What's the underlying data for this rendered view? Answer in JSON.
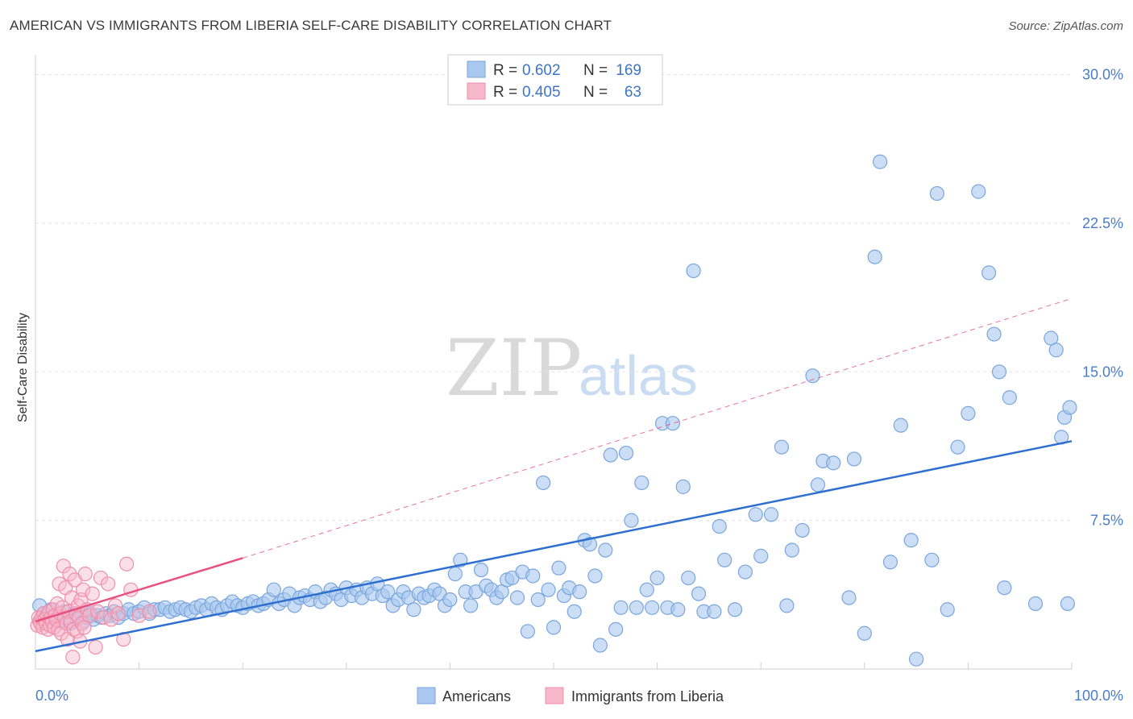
{
  "chart_data": {
    "type": "scatter",
    "title": "AMERICAN VS IMMIGRANTS FROM LIBERIA SELF-CARE DISABILITY CORRELATION CHART",
    "source": "Source: ZipAtlas.com",
    "xlabel": "",
    "ylabel": "Self-Care Disability",
    "xlim": [
      0,
      100
    ],
    "ylim": [
      0,
      31
    ],
    "x_tick_labels": [
      "0.0%",
      "100.0%"
    ],
    "y_ticks": [
      7.5,
      15.0,
      22.5,
      30.0
    ],
    "y_tick_labels": [
      "7.5%",
      "15.0%",
      "22.5%",
      "30.0%"
    ],
    "grid": true,
    "legend": {
      "position": "top-center",
      "r_label": "R =",
      "n_label": "N =",
      "entries": [
        {
          "r": "0.602",
          "n": "169"
        },
        {
          "r": "0.405",
          "n": "63"
        }
      ]
    },
    "watermark": {
      "zip": "ZIP",
      "atlas": "atlas"
    },
    "series": [
      {
        "name": "Americans",
        "color": "#a9c8ef",
        "stroke": "#7aa6dd",
        "trend_color": "#2f6fd0",
        "trend": {
          "x0": 0,
          "y0": 0.9,
          "x1": 100,
          "y1": 11.5
        },
        "points": [
          [
            0.4,
            3.2
          ],
          [
            0.8,
            2.8
          ],
          [
            1.2,
            2.6
          ],
          [
            1.5,
            3.0
          ],
          [
            1.8,
            2.5
          ],
          [
            2.2,
            2.7
          ],
          [
            2.5,
            2.4
          ],
          [
            2.8,
            2.9
          ],
          [
            3.1,
            2.6
          ],
          [
            3.4,
            2.3
          ],
          [
            3.7,
            2.8
          ],
          [
            4.0,
            2.5
          ],
          [
            4.3,
            2.7
          ],
          [
            4.6,
            2.4
          ],
          [
            5.0,
            2.6
          ],
          [
            5.3,
            2.8
          ],
          [
            5.6,
            2.5
          ],
          [
            6.0,
            2.7
          ],
          [
            6.4,
            2.6
          ],
          [
            6.8,
            2.8
          ],
          [
            7.2,
            2.7
          ],
          [
            7.6,
            2.9
          ],
          [
            8.0,
            2.6
          ],
          [
            8.5,
            2.8
          ],
          [
            9.0,
            3.0
          ],
          [
            9.5,
            2.8
          ],
          [
            10.0,
            2.9
          ],
          [
            10.5,
            3.1
          ],
          [
            11.0,
            2.8
          ],
          [
            11.5,
            3.0
          ],
          [
            12.0,
            3.0
          ],
          [
            12.5,
            3.1
          ],
          [
            13.0,
            2.9
          ],
          [
            13.5,
            3.0
          ],
          [
            14.0,
            3.1
          ],
          [
            14.5,
            3.0
          ],
          [
            15.0,
            2.9
          ],
          [
            15.5,
            3.1
          ],
          [
            16.0,
            3.2
          ],
          [
            16.5,
            3.0
          ],
          [
            17.0,
            3.3
          ],
          [
            17.5,
            3.1
          ],
          [
            18.0,
            3.0
          ],
          [
            18.5,
            3.2
          ],
          [
            19.0,
            3.4
          ],
          [
            19.5,
            3.2
          ],
          [
            20.0,
            3.1
          ],
          [
            20.5,
            3.3
          ],
          [
            21.0,
            3.4
          ],
          [
            21.5,
            3.2
          ],
          [
            22.0,
            3.3
          ],
          [
            22.5,
            3.5
          ],
          [
            23.0,
            4.0
          ],
          [
            23.5,
            3.3
          ],
          [
            24.0,
            3.5
          ],
          [
            24.5,
            3.8
          ],
          [
            25.0,
            3.2
          ],
          [
            25.5,
            3.6
          ],
          [
            26.0,
            3.7
          ],
          [
            26.5,
            3.5
          ],
          [
            27.0,
            3.9
          ],
          [
            27.5,
            3.4
          ],
          [
            28.0,
            3.6
          ],
          [
            28.5,
            4.0
          ],
          [
            29.0,
            3.8
          ],
          [
            29.5,
            3.5
          ],
          [
            30.0,
            4.1
          ],
          [
            30.5,
            3.7
          ],
          [
            31.0,
            4.0
          ],
          [
            31.5,
            3.6
          ],
          [
            32.0,
            4.1
          ],
          [
            32.5,
            3.8
          ],
          [
            33.0,
            4.3
          ],
          [
            33.5,
            3.7
          ],
          [
            34.0,
            3.9
          ],
          [
            34.5,
            3.2
          ],
          [
            35.0,
            3.5
          ],
          [
            35.5,
            3.9
          ],
          [
            36.0,
            3.6
          ],
          [
            36.5,
            3.0
          ],
          [
            37.0,
            3.8
          ],
          [
            37.5,
            3.6
          ],
          [
            38.0,
            3.7
          ],
          [
            38.5,
            4.0
          ],
          [
            39.0,
            3.8
          ],
          [
            39.5,
            3.2
          ],
          [
            40.0,
            3.5
          ],
          [
            40.5,
            4.8
          ],
          [
            41.0,
            5.5
          ],
          [
            41.5,
            3.9
          ],
          [
            42.0,
            3.2
          ],
          [
            42.5,
            3.9
          ],
          [
            43.0,
            5.0
          ],
          [
            43.5,
            4.2
          ],
          [
            44.0,
            4.0
          ],
          [
            44.5,
            3.6
          ],
          [
            45.0,
            3.9
          ],
          [
            45.5,
            4.5
          ],
          [
            46.0,
            4.6
          ],
          [
            46.5,
            3.6
          ],
          [
            47.0,
            4.9
          ],
          [
            47.5,
            1.9
          ],
          [
            48.0,
            4.7
          ],
          [
            48.5,
            3.5
          ],
          [
            49.0,
            9.4
          ],
          [
            49.5,
            4.0
          ],
          [
            50.0,
            2.1
          ],
          [
            50.5,
            5.1
          ],
          [
            51.0,
            3.7
          ],
          [
            51.5,
            4.1
          ],
          [
            52.0,
            2.9
          ],
          [
            52.5,
            3.9
          ],
          [
            53.0,
            6.5
          ],
          [
            53.5,
            6.3
          ],
          [
            54.0,
            4.7
          ],
          [
            54.5,
            1.2
          ],
          [
            55.0,
            6.0
          ],
          [
            55.5,
            10.8
          ],
          [
            56.0,
            2.0
          ],
          [
            56.5,
            3.1
          ],
          [
            57.0,
            10.9
          ],
          [
            57.5,
            7.5
          ],
          [
            58.0,
            3.1
          ],
          [
            58.5,
            9.4
          ],
          [
            59.0,
            4.0
          ],
          [
            59.5,
            3.1
          ],
          [
            60.0,
            4.6
          ],
          [
            60.5,
            12.4
          ],
          [
            61.0,
            3.1
          ],
          [
            61.5,
            12.4
          ],
          [
            62.0,
            3.0
          ],
          [
            62.5,
            9.2
          ],
          [
            63.0,
            4.6
          ],
          [
            63.5,
            20.1
          ],
          [
            64.0,
            3.8
          ],
          [
            64.5,
            2.9
          ],
          [
            65.5,
            2.9
          ],
          [
            66.0,
            7.2
          ],
          [
            66.5,
            5.5
          ],
          [
            67.5,
            3.0
          ],
          [
            68.5,
            4.9
          ],
          [
            69.5,
            7.8
          ],
          [
            70.0,
            5.7
          ],
          [
            71.0,
            7.8
          ],
          [
            72.0,
            11.2
          ],
          [
            72.5,
            3.2
          ],
          [
            73.0,
            6.0
          ],
          [
            74.0,
            7.0
          ],
          [
            75.0,
            14.8
          ],
          [
            75.5,
            9.3
          ],
          [
            76.0,
            10.5
          ],
          [
            77.0,
            10.4
          ],
          [
            78.5,
            3.6
          ],
          [
            79.0,
            10.6
          ],
          [
            80.0,
            1.8
          ],
          [
            81.0,
            20.8
          ],
          [
            81.5,
            25.6
          ],
          [
            82.5,
            5.4
          ],
          [
            83.5,
            12.3
          ],
          [
            84.5,
            6.5
          ],
          [
            85.0,
            0.5
          ],
          [
            86.5,
            5.5
          ],
          [
            87.0,
            24.0
          ],
          [
            88.0,
            3.0
          ],
          [
            89.0,
            11.2
          ],
          [
            90.0,
            12.9
          ],
          [
            91.0,
            24.1
          ],
          [
            92.0,
            20.0
          ],
          [
            92.5,
            16.9
          ],
          [
            93.0,
            15.0
          ],
          [
            93.5,
            4.1
          ],
          [
            94.0,
            13.7
          ],
          [
            96.5,
            3.3
          ],
          [
            98.0,
            16.7
          ],
          [
            98.5,
            16.1
          ],
          [
            99.0,
            11.7
          ],
          [
            99.3,
            12.7
          ],
          [
            99.6,
            3.3
          ],
          [
            99.8,
            13.2
          ]
        ]
      },
      {
        "name": "Immigrants from Liberia",
        "color": "#f7b7cb",
        "stroke": "#ee8fab",
        "trend_color": "#e8507e",
        "trend": {
          "x0": 0,
          "y0": 2.4,
          "x1": 20,
          "y1": 5.6
        },
        "trend_dashed": {
          "x0": 20,
          "y0": 5.6,
          "x1": 100,
          "y1": 18.7
        },
        "points": [
          [
            0.2,
            2.2
          ],
          [
            0.3,
            2.6
          ],
          [
            0.4,
            2.4
          ],
          [
            0.5,
            2.3
          ],
          [
            0.6,
            2.6
          ],
          [
            0.7,
            2.1
          ],
          [
            0.8,
            2.8
          ],
          [
            0.9,
            2.5
          ],
          [
            1.0,
            2.3
          ],
          [
            1.1,
            2.7
          ],
          [
            1.2,
            2.0
          ],
          [
            1.3,
            2.9
          ],
          [
            1.4,
            2.2
          ],
          [
            1.5,
            2.6
          ],
          [
            1.6,
            2.4
          ],
          [
            1.7,
            3.0
          ],
          [
            1.8,
            2.1
          ],
          [
            1.9,
            2.7
          ],
          [
            2.0,
            2.5
          ],
          [
            2.1,
            3.3
          ],
          [
            2.2,
            2.0
          ],
          [
            2.3,
            4.3
          ],
          [
            2.4,
            2.8
          ],
          [
            2.5,
            1.8
          ],
          [
            2.6,
            3.1
          ],
          [
            2.7,
            5.2
          ],
          [
            2.8,
            2.6
          ],
          [
            2.9,
            4.1
          ],
          [
            3.0,
            2.3
          ],
          [
            3.1,
            1.5
          ],
          [
            3.2,
            2.9
          ],
          [
            3.3,
            4.8
          ],
          [
            3.4,
            2.4
          ],
          [
            3.5,
            3.6
          ],
          [
            3.6,
            0.6
          ],
          [
            3.7,
            2.0
          ],
          [
            3.8,
            4.5
          ],
          [
            3.9,
            2.8
          ],
          [
            4.0,
            1.9
          ],
          [
            4.1,
            3.2
          ],
          [
            4.2,
            2.6
          ],
          [
            4.3,
            1.4
          ],
          [
            4.4,
            3.5
          ],
          [
            4.5,
            2.3
          ],
          [
            4.6,
            4.0
          ],
          [
            4.7,
            2.1
          ],
          [
            4.8,
            4.8
          ],
          [
            5.0,
            3.0
          ],
          [
            5.2,
            2.7
          ],
          [
            5.5,
            3.8
          ],
          [
            5.8,
            1.1
          ],
          [
            6.0,
            2.9
          ],
          [
            6.3,
            4.6
          ],
          [
            6.6,
            2.6
          ],
          [
            7.0,
            4.3
          ],
          [
            7.3,
            2.5
          ],
          [
            7.7,
            3.2
          ],
          [
            8.0,
            2.8
          ],
          [
            8.5,
            1.5
          ],
          [
            8.8,
            5.3
          ],
          [
            9.2,
            4.0
          ],
          [
            10.0,
            2.7
          ],
          [
            11.0,
            2.9
          ]
        ]
      }
    ]
  },
  "legend_bottom": [
    "Americans",
    "Immigrants from Liberia"
  ]
}
